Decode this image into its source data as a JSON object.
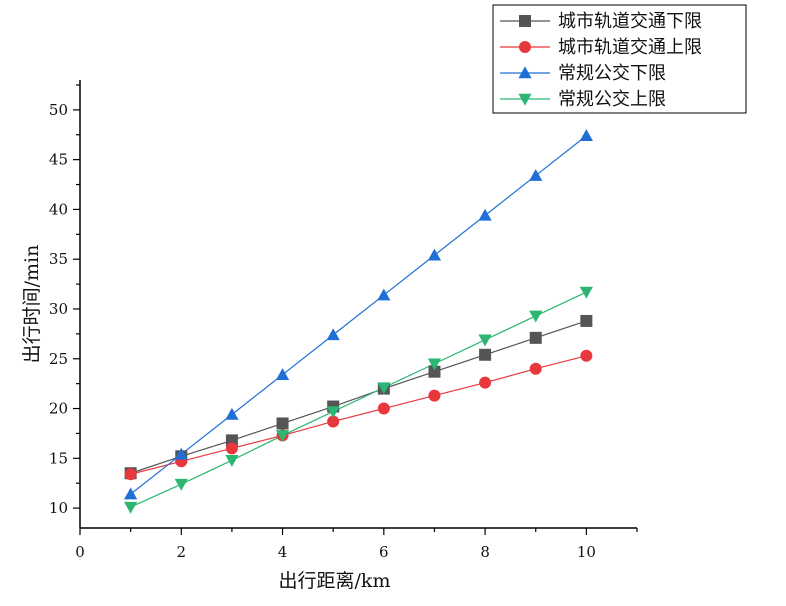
{
  "chart_data": {
    "type": "line",
    "title": "",
    "xlabel": "出行距离/km",
    "ylabel": "出行时间/min",
    "xlim": [
      0,
      11
    ],
    "ylim": [
      8,
      53
    ],
    "xticks": [
      0,
      2,
      4,
      6,
      8,
      10
    ],
    "yticks": [
      10,
      15,
      20,
      25,
      30,
      35,
      40,
      45,
      50
    ],
    "grid": false,
    "legend_position": "top-right",
    "x": [
      1,
      2,
      3,
      4,
      5,
      6,
      7,
      8,
      9,
      10
    ],
    "series": [
      {
        "name": "城市轨道交通下限",
        "color": "#555555",
        "marker": "square",
        "values": [
          13.5,
          15.2,
          16.8,
          18.5,
          20.2,
          22.0,
          23.7,
          25.4,
          27.1,
          28.8
        ]
      },
      {
        "name": "城市轨道交通上限",
        "color": "#e8383d",
        "marker": "circle",
        "values": [
          13.4,
          14.7,
          16.0,
          17.3,
          18.7,
          20.0,
          21.3,
          22.6,
          24.0,
          25.3
        ]
      },
      {
        "name": "常规公交下限",
        "color": "#1f6fd6",
        "marker": "triangle-up",
        "values": [
          11.4,
          15.4,
          19.4,
          23.4,
          27.4,
          31.4,
          35.4,
          39.4,
          43.4,
          47.4
        ]
      },
      {
        "name": "常规公交上限",
        "color": "#2bb673",
        "marker": "triangle-down",
        "values": [
          10.1,
          12.4,
          14.8,
          17.3,
          19.7,
          22.1,
          24.5,
          26.9,
          29.3,
          31.7
        ]
      }
    ]
  }
}
